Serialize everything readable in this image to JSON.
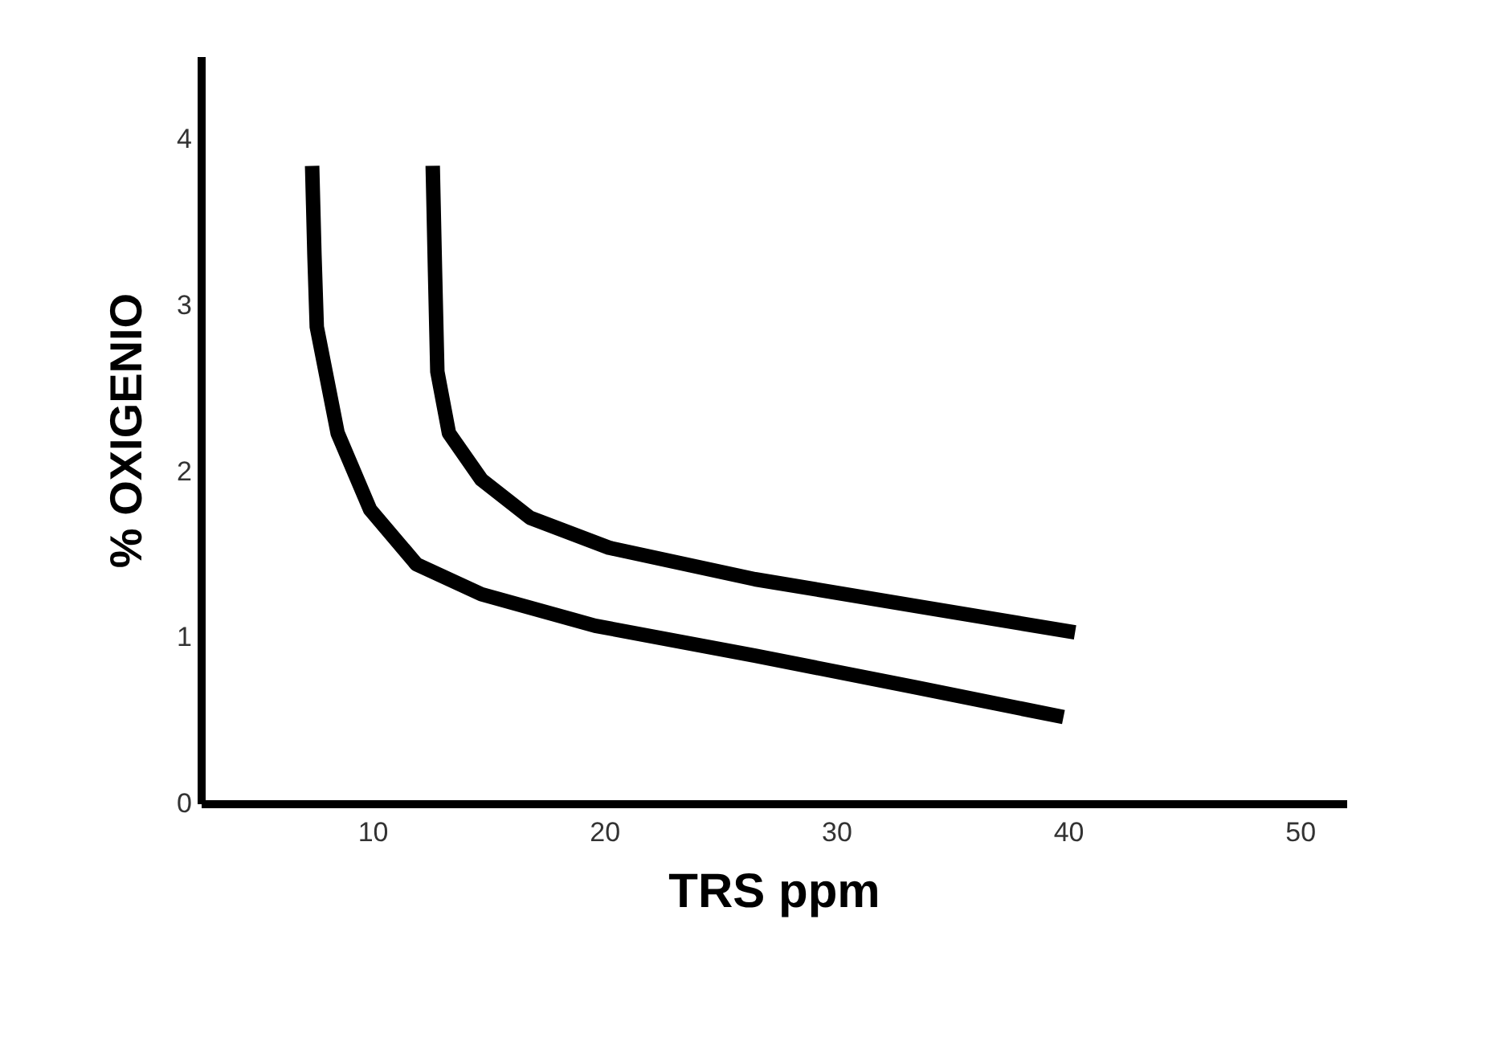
{
  "chart_data": {
    "type": "line",
    "xlabel": "TRS ppm",
    "ylabel": "% OXIGENIO",
    "xlim": [
      2.6,
      52
    ],
    "xticks": [
      10,
      20,
      30,
      40,
      50
    ],
    "ylim": [
      0,
      4.5
    ],
    "yticks": [
      0,
      1,
      2,
      3,
      4
    ],
    "grid": false,
    "marker": "none",
    "line_style": "solid",
    "series": [
      {
        "color": "#000000",
        "x": [
          12.6,
          12.7,
          12.8,
          13.3,
          14.7,
          16.8,
          20.2,
          26.5,
          33.4,
          40.3
        ],
        "values": [
          3.84,
          3.2,
          2.6,
          2.23,
          1.95,
          1.72,
          1.54,
          1.35,
          1.19,
          1.03
        ]
      },
      {
        "color": "#000000",
        "x": [
          7.4,
          7.5,
          7.6,
          8.5,
          9.9,
          11.9,
          14.7,
          19.6,
          26.5,
          33.4,
          39.8
        ],
        "values": [
          3.84,
          3.3,
          2.87,
          2.23,
          1.77,
          1.44,
          1.26,
          1.07,
          0.89,
          0.7,
          0.52
        ]
      }
    ]
  }
}
